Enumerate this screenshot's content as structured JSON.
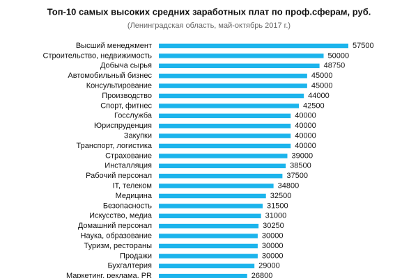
{
  "chart_data": {
    "type": "bar",
    "orientation": "horizontal",
    "title": "Топ-10 самых высоких средних заработных плат по проф.сферам, руб.",
    "subtitle": "(Ленинградская область, май-октябрь 2017 г.)",
    "color": "#1cb4ec",
    "categories": [
      "Высший менеджмент",
      "Строительство, недвижимость",
      "Добыча сырья",
      "Автомобильный бизнес",
      "Консультирование",
      "Производство",
      "Спорт, фитнес",
      "Госслужба",
      "Юриспруденция",
      "Закупки",
      "Транспорт, логистика",
      "Страхование",
      "Инсталляция",
      "Рабочий персонал",
      "IT, телеком",
      "Медицина",
      "Безопасность",
      "Искусство, медиа",
      "Домашний персонал",
      "Наука, образование",
      "Туризм, рестораны",
      "Продажи",
      "Бухгалтерия",
      "Маркетинг, реклама, PR"
    ],
    "values": [
      57500,
      50000,
      48750,
      45000,
      45000,
      44000,
      42500,
      40000,
      40000,
      40000,
      40000,
      39000,
      38500,
      37500,
      34800,
      32500,
      31500,
      31000,
      30250,
      30000,
      30000,
      30000,
      29000,
      26800
    ]
  }
}
